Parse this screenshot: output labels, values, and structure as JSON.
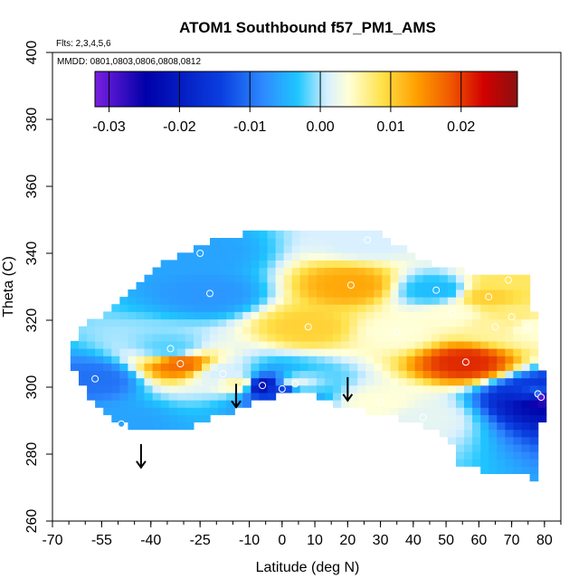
{
  "chart_data": {
    "type": "heatmap",
    "title": "ATOM1 Southbound f57_PM1_AMS",
    "annotations": [
      "Flts: 2,3,4,5,6",
      "MMDD: 0801,0803,0806,0808,0812"
    ],
    "xlabel": "Latitude (deg N)",
    "ylabel": "Theta (C)",
    "xlim": [
      -70,
      85
    ],
    "ylim": [
      260,
      400
    ],
    "x_ticks": [
      -70,
      -55,
      -40,
      -25,
      -10,
      0,
      10,
      20,
      30,
      40,
      50,
      60,
      70,
      80
    ],
    "x_tick_labels": [
      "-70",
      "-55",
      "-40",
      "-25",
      "-10",
      "0",
      "10",
      "20",
      "30",
      "40",
      "50",
      "60",
      "70",
      "80"
    ],
    "y_ticks": [
      260,
      280,
      300,
      320,
      340,
      360,
      380,
      400
    ],
    "y_tick_labels": [
      "260",
      "280",
      "300",
      "320",
      "340",
      "360",
      "380",
      "400"
    ],
    "colorbar": {
      "range": [
        -0.032,
        0.028
      ],
      "ticks": [
        -0.03,
        -0.02,
        -0.01,
        0.0,
        0.01,
        0.02
      ],
      "tick_labels": [
        "-0.03",
        "-0.02",
        "-0.01",
        "0.00",
        "0.01",
        "0.02"
      ],
      "colors": [
        "#7a1fe0",
        "#0000a8",
        "#0a3fe0",
        "#2e8bff",
        "#1fc6ff",
        "#d8f0ff",
        "#ffffd8",
        "#ffe24a",
        "#ffa000",
        "#f05a00",
        "#d20000",
        "#8c1010"
      ]
    },
    "points": [
      {
        "x": -57.0,
        "y": 302.5,
        "v": -0.01
      },
      {
        "x": -49.0,
        "y": 289.0,
        "v": -0.006
      },
      {
        "x": -34.0,
        "y": 311.5,
        "v": -0.002
      },
      {
        "x": -31.0,
        "y": 307.0,
        "v": 0.017
      },
      {
        "x": -25.0,
        "y": 340.0,
        "v": -0.006
      },
      {
        "x": -22.0,
        "y": 328.0,
        "v": -0.007
      },
      {
        "x": -18.0,
        "y": 304.0,
        "v": 0.001
      },
      {
        "x": -13.0,
        "y": 301.0,
        "v": 0.006
      },
      {
        "x": -6.0,
        "y": 300.5,
        "v": -0.022
      },
      {
        "x": 0.0,
        "y": 299.5,
        "v": -0.014
      },
      {
        "x": 4.0,
        "y": 301.0,
        "v": 0.002
      },
      {
        "x": 8.0,
        "y": 318.0,
        "v": 0.01
      },
      {
        "x": 21.0,
        "y": 330.5,
        "v": 0.013
      },
      {
        "x": 26.0,
        "y": 344.0,
        "v": 0.001
      },
      {
        "x": 30.0,
        "y": 295.5,
        "v": 0.004
      },
      {
        "x": 35.0,
        "y": 316.5,
        "v": 0.004
      },
      {
        "x": 43.0,
        "y": 291.0,
        "v": 0.002
      },
      {
        "x": 47.0,
        "y": 329.0,
        "v": -0.004
      },
      {
        "x": 52.0,
        "y": 322.0,
        "v": 0.004
      },
      {
        "x": 56.0,
        "y": 307.5,
        "v": 0.021
      },
      {
        "x": 63.0,
        "y": 327.0,
        "v": 0.01
      },
      {
        "x": 65.0,
        "y": 318.0,
        "v": 0.006
      },
      {
        "x": 69.0,
        "y": 332.0,
        "v": 0.008
      },
      {
        "x": 70.0,
        "y": 321.0,
        "v": 0.007
      },
      {
        "x": 75.0,
        "y": 318.0,
        "v": 0.004
      },
      {
        "x": 78.0,
        "y": 298.0,
        "v": -0.01
      },
      {
        "x": 79.0,
        "y": 297.0,
        "v": -0.03
      }
    ],
    "arrows": [
      {
        "x": -43.0,
        "y_start": 283.0,
        "y_end": 276.0
      },
      {
        "x": -14.0,
        "y_start": 301.0,
        "y_end": 294.0
      },
      {
        "x": 20.0,
        "y_start": 303.0,
        "y_end": 296.0
      }
    ]
  }
}
